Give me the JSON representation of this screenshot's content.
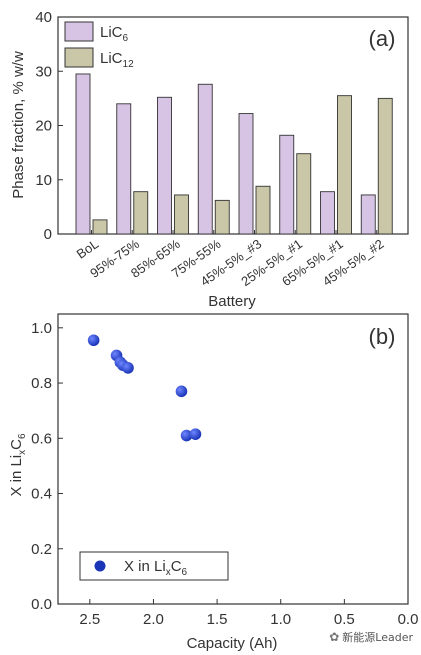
{
  "chart_data": [
    {
      "type": "bar",
      "panel_label": "(a)",
      "xlabel": "Battery",
      "ylabel": "Phase fraction, % w/w",
      "ylim": [
        0,
        40
      ],
      "yticks": [
        "0",
        "10",
        "20",
        "30",
        "40"
      ],
      "categories": [
        "BoL",
        "95%-75%",
        "85%-65%",
        "75%-55%",
        "45%-5%_#3",
        "25%-5%_#1",
        "65%-5%_#1",
        "45%-5%_#2"
      ],
      "series": [
        {
          "name": "LiC6",
          "name_main": "LiC",
          "name_sub": "6",
          "color": "#d7c4e4",
          "values": [
            29.5,
            24.0,
            25.2,
            27.6,
            22.2,
            18.2,
            7.8,
            7.2
          ]
        },
        {
          "name": "LiC12",
          "name_main": "LiC",
          "name_sub": "12",
          "color": "#c9c7a7",
          "values": [
            2.6,
            7.8,
            7.2,
            6.2,
            8.8,
            14.8,
            25.5,
            25.0
          ]
        }
      ],
      "legend": "top-left"
    },
    {
      "type": "scatter",
      "panel_label": "(b)",
      "xlabel": "Capacity (Ah)",
      "ylabel_parts": [
        "X in Li",
        "x",
        "C",
        "6"
      ],
      "xlim": [
        2.75,
        0.0
      ],
      "ylim": [
        0.0,
        1.05
      ],
      "xticks": [
        "2.5",
        "2.0",
        "1.5",
        "1.0",
        "0.5",
        "0.0"
      ],
      "yticks": [
        "0.0",
        "0.2",
        "0.4",
        "0.6",
        "0.8",
        "1.0"
      ],
      "series": [
        {
          "name_parts": [
            "X in Li",
            "x",
            "C",
            "6"
          ],
          "color": "#1a35b8",
          "points": [
            {
              "x": 2.47,
              "y": 0.955
            },
            {
              "x": 2.29,
              "y": 0.9
            },
            {
              "x": 2.26,
              "y": 0.875
            },
            {
              "x": 2.24,
              "y": 0.865
            },
            {
              "x": 2.2,
              "y": 0.855
            },
            {
              "x": 1.78,
              "y": 0.77
            },
            {
              "x": 1.74,
              "y": 0.61
            },
            {
              "x": 1.67,
              "y": 0.615
            }
          ]
        }
      ],
      "legend": "bottom-left"
    }
  ],
  "watermark": {
    "text": "新能源Leader",
    "icon": "wechat-icon"
  }
}
